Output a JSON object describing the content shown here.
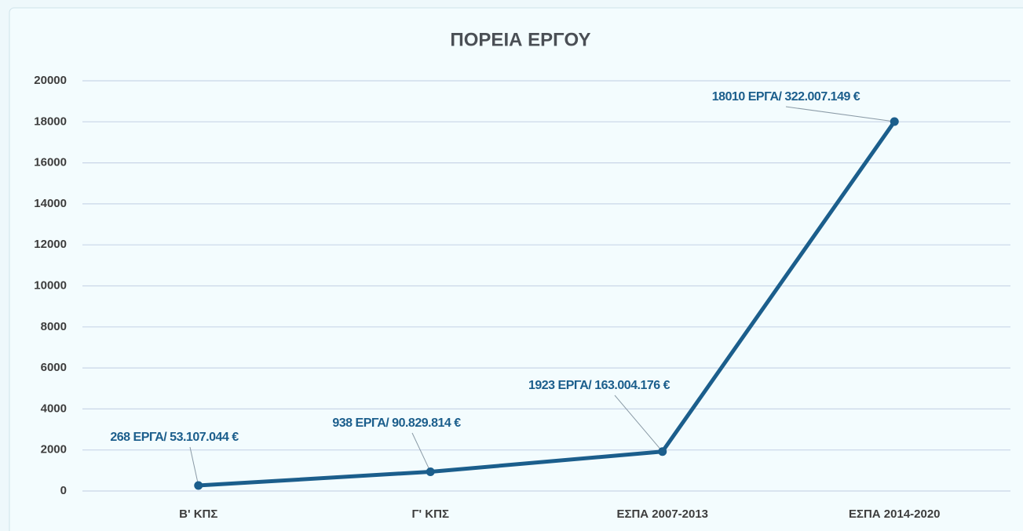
{
  "chart_data": {
    "type": "line",
    "title": "ΠΟΡΕΙΑ ΕΡΓΟΥ",
    "categories": [
      "Β' ΚΠΣ",
      "Γ' ΚΠΣ",
      "ΕΣΠΑ 2007-2013",
      "ΕΣΠΑ 2014-2020"
    ],
    "values": [
      268,
      938,
      1923,
      18010
    ],
    "value_labels": [
      "268 ΕΡΓΑ/ 53.107.044 €",
      "938 ΕΡΓΑ/ 90.829.814 €",
      "1923 ΕΡΓΑ/ 163.004.176 €",
      "18010 ΕΡΓΑ/ 322.007.149 €"
    ],
    "color": "#1b5e8c",
    "ylim": [
      0,
      20000
    ],
    "yticks": [
      0,
      2000,
      4000,
      6000,
      8000,
      10000,
      12000,
      14000,
      16000,
      18000,
      20000
    ],
    "grid": true
  }
}
